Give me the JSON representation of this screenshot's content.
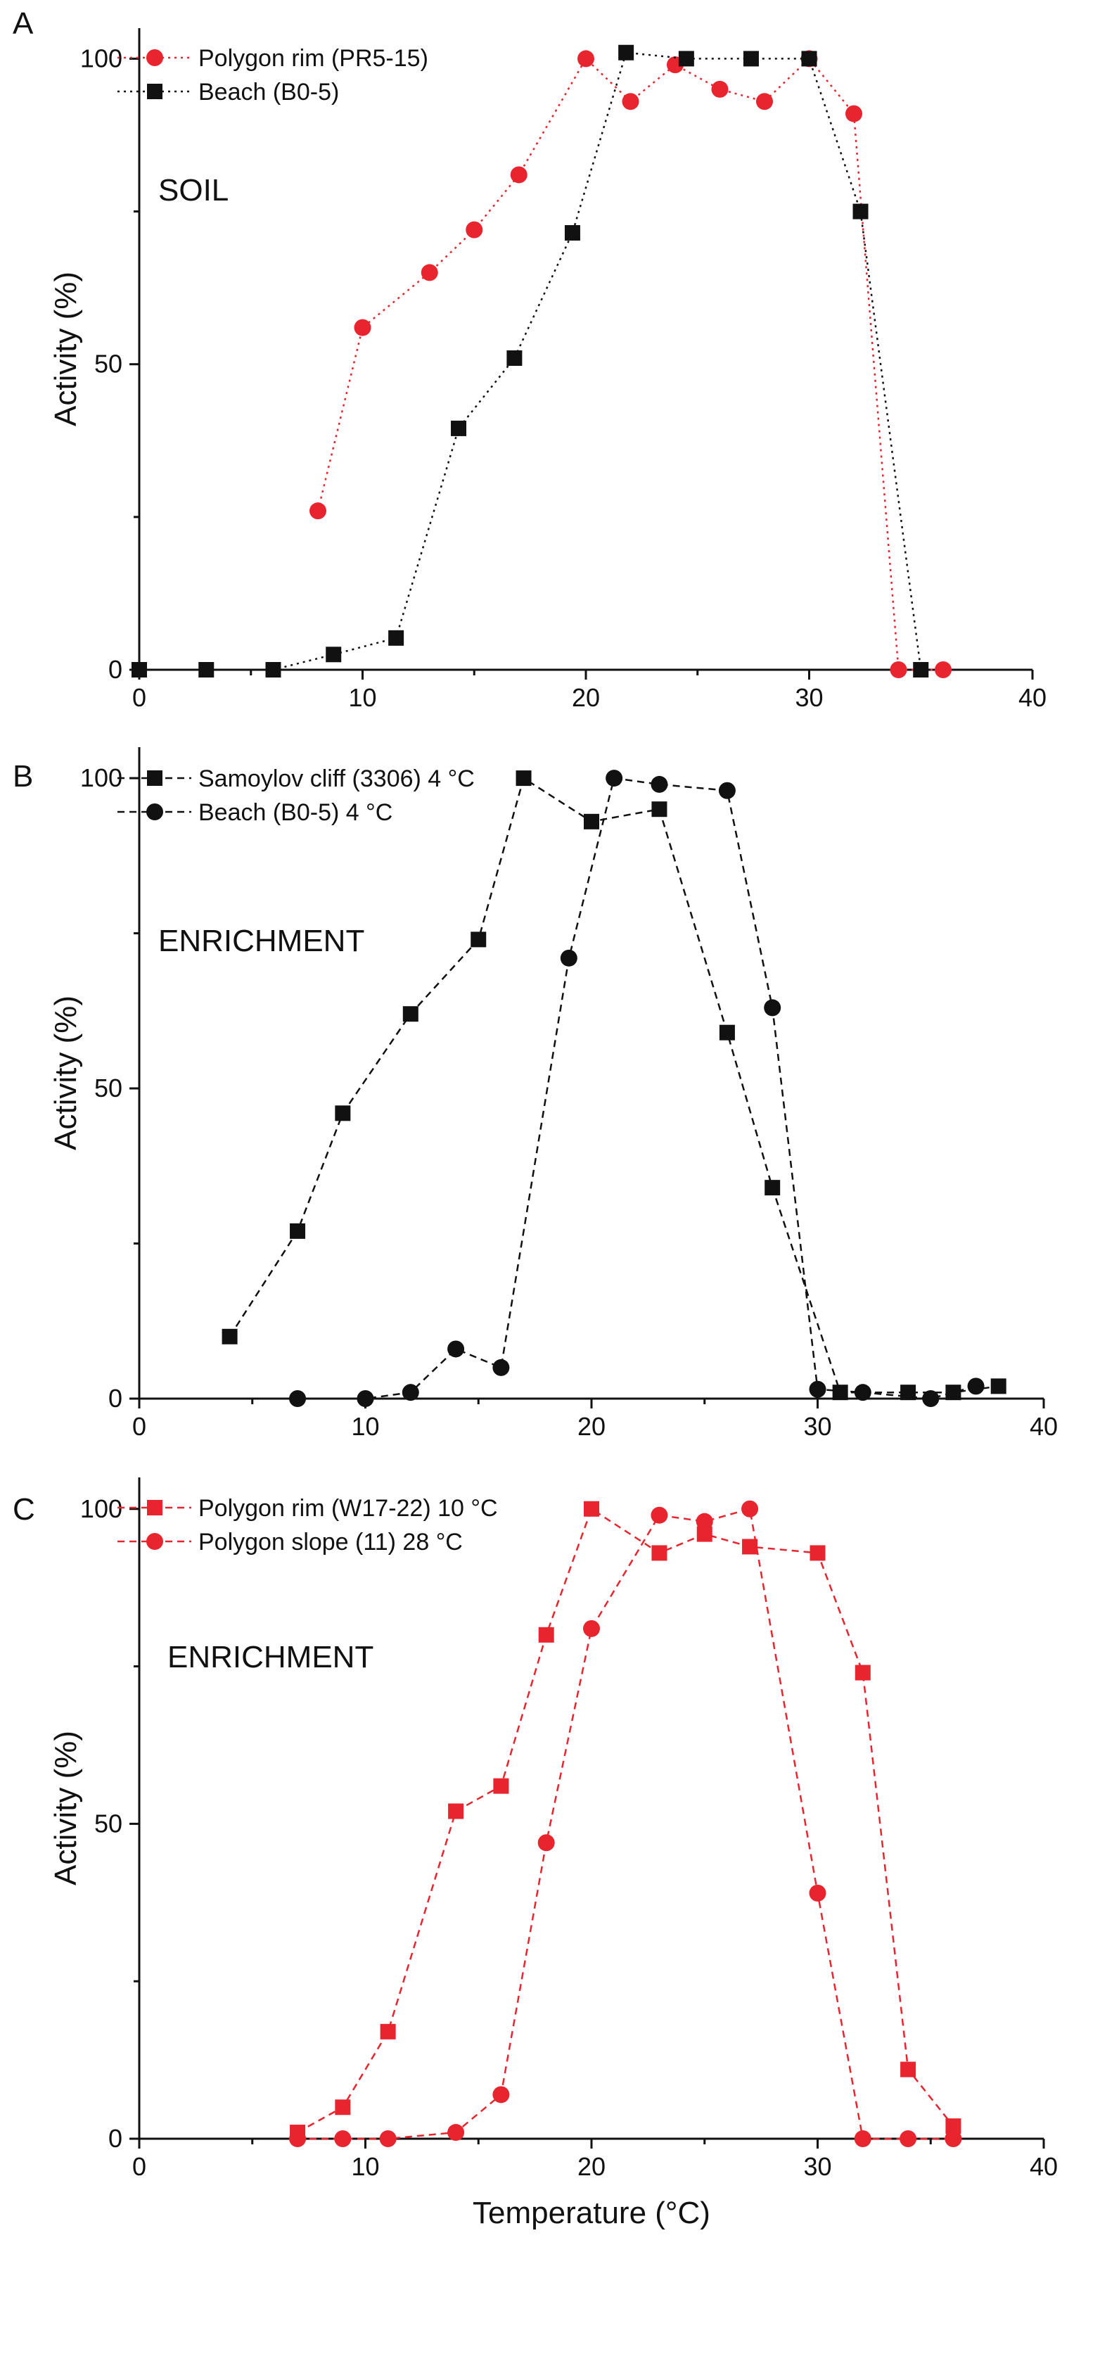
{
  "chart_data": [
    {
      "type": "line",
      "panel_label": "A",
      "annotation": "SOIL",
      "xlabel": "",
      "ylabel": "Activity (%)",
      "xlim": [
        0,
        40
      ],
      "ylim": [
        0,
        105
      ],
      "x_ticks": [
        0,
        10,
        20,
        30,
        40
      ],
      "y_ticks": [
        0,
        50,
        100
      ],
      "legend_position": "top-left",
      "series": [
        {
          "name": "Polygon rim (PR5-15)",
          "color": "#e8252e",
          "marker": "circle",
          "line_style": "dotted",
          "x": [
            8,
            10,
            13,
            15,
            17,
            20,
            22,
            24,
            26,
            28,
            30,
            32,
            34,
            36
          ],
          "y": [
            26,
            56,
            65,
            72,
            81,
            100,
            93,
            99,
            95,
            93,
            100,
            91,
            0,
            0
          ]
        },
        {
          "name": "Beach (B0-5)",
          "color": "#111111",
          "marker": "square",
          "line_style": "dotted",
          "x": [
            0,
            3,
            6,
            8.7,
            11.5,
            14.3,
            16.8,
            19.4,
            21.8,
            24.5,
            27.4,
            30,
            32.3,
            35
          ],
          "y": [
            0,
            0,
            0,
            2.5,
            5.2,
            39.5,
            51,
            71.5,
            101,
            100,
            100,
            100,
            75,
            0
          ]
        }
      ]
    },
    {
      "type": "line",
      "panel_label": "B",
      "annotation": "ENRICHMENT",
      "xlabel": "",
      "ylabel": "Activity (%)",
      "xlim": [
        0,
        40
      ],
      "ylim": [
        0,
        105
      ],
      "x_ticks": [
        0,
        10,
        20,
        30,
        40
      ],
      "y_ticks": [
        0,
        50,
        100
      ],
      "legend_position": "top-left",
      "series": [
        {
          "name": "Samoylov cliff (3306) 4 °C",
          "color": "#111111",
          "marker": "square",
          "line_style": "dashed",
          "x": [
            4,
            7,
            9,
            12,
            15,
            17,
            20,
            23,
            26,
            28,
            31,
            34,
            36,
            38
          ],
          "y": [
            10,
            27,
            46,
            62,
            74,
            100,
            93,
            95,
            59,
            34,
            1,
            1,
            1,
            2
          ]
        },
        {
          "name": "Beach (B0-5) 4 °C",
          "color": "#111111",
          "marker": "circle",
          "line_style": "dashed",
          "x": [
            7,
            10,
            12,
            14,
            16,
            19,
            21,
            23,
            26,
            28,
            30,
            32,
            35,
            37
          ],
          "y": [
            0,
            0,
            1,
            8,
            5,
            71,
            100,
            99,
            98,
            63,
            1.5,
            1,
            0,
            2
          ]
        }
      ]
    },
    {
      "type": "line",
      "panel_label": "C",
      "annotation": "ENRICHMENT",
      "xlabel": "Temperature (°C)",
      "ylabel": "Activity (%)",
      "xlim": [
        0,
        40
      ],
      "ylim": [
        0,
        105
      ],
      "x_ticks": [
        0,
        10,
        20,
        30,
        40
      ],
      "y_ticks": [
        0,
        50,
        100
      ],
      "legend_position": "top-left",
      "series": [
        {
          "name": "Polygon rim (W17-22) 10 °C",
          "color": "#e8252e",
          "marker": "square",
          "line_style": "dashed",
          "x": [
            7,
            9,
            11,
            14,
            16,
            18,
            20,
            23,
            25,
            27,
            30,
            32,
            34,
            36
          ],
          "y": [
            1,
            5,
            17,
            52,
            56,
            80,
            100,
            93,
            96,
            94,
            93,
            74,
            11,
            2
          ]
        },
        {
          "name": "Polygon slope (11) 28 °C",
          "color": "#e8252e",
          "marker": "circle",
          "line_style": "dashed",
          "x": [
            7,
            9,
            11,
            14,
            16,
            18,
            20,
            23,
            25,
            27,
            30,
            32,
            34,
            36
          ],
          "y": [
            0,
            0,
            0,
            1,
            7,
            47,
            81,
            99,
            98,
            100,
            39,
            0,
            0,
            0
          ]
        }
      ]
    }
  ]
}
